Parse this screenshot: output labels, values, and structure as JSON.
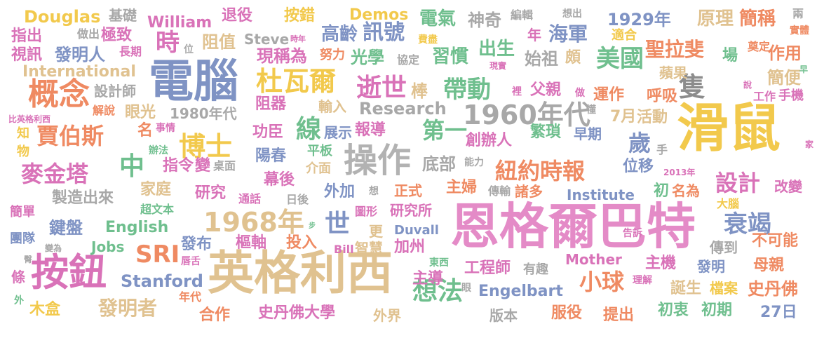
{
  "words": [
    {
      "text": "滑鼠",
      "color": "#f2c94c"
    },
    {
      "text": "恩格爾巴特",
      "color": "#e48bc7"
    },
    {
      "text": "英格利西",
      "color": "#e0c290"
    },
    {
      "text": "電腦",
      "color": "#7f93c4"
    },
    {
      "text": "按鈕",
      "color": "#d972b8"
    },
    {
      "text": "操作",
      "color": "#b2b2b2"
    },
    {
      "text": "概念",
      "color": "#ef8a62"
    },
    {
      "text": "1960年代",
      "color": "#a8a8a8"
    },
    {
      "text": "杜瓦爾",
      "color": "#f2c94c"
    },
    {
      "text": "1968年",
      "color": "#e0c290"
    },
    {
      "text": "逝世",
      "color": "#d972b8"
    },
    {
      "text": "帶動",
      "color": "#6fbf8e"
    },
    {
      "text": "賈伯斯",
      "color": "#ef8a62"
    },
    {
      "text": "麥金塔",
      "color": "#d972b8"
    },
    {
      "text": "紐約時報",
      "color": "#ef8a62"
    },
    {
      "text": "美國",
      "color": "#6fbf8e"
    },
    {
      "text": "想法",
      "color": "#6fbf8e"
    },
    {
      "text": "隻",
      "color": "#8c8c8c"
    },
    {
      "text": "博士",
      "color": "#f2c94c"
    },
    {
      "text": "第一",
      "color": "#6fbf8e"
    },
    {
      "text": "線",
      "color": "#6fbf8e"
    },
    {
      "text": "中",
      "color": "#6fbf8e"
    },
    {
      "text": "世",
      "color": "#7f93c4"
    },
    {
      "text": "SRI",
      "color": "#ef8a62"
    },
    {
      "text": "小球",
      "color": "#ef8a62"
    },
    {
      "text": "衰竭",
      "color": "#7f93c4"
    },
    {
      "text": "時",
      "color": "#d972b8"
    },
    {
      "text": "設計",
      "color": "#d972b8"
    },
    {
      "text": "歲",
      "color": "#7f93c4"
    },
    {
      "text": "發明者",
      "color": "#e0c290"
    },
    {
      "text": "Douglas",
      "color": "#f2c94c"
    },
    {
      "text": "William",
      "color": "#d972b8"
    },
    {
      "text": "Demos",
      "color": "#f2c94c"
    },
    {
      "text": "1929年",
      "color": "#7f93c4"
    },
    {
      "text": "訊號",
      "color": "#7f93c4"
    },
    {
      "text": "高齡",
      "color": "#7f93c4"
    },
    {
      "text": "電氣",
      "color": "#6fbf8e"
    },
    {
      "text": "神奇",
      "color": "#a8a8a8"
    },
    {
      "text": "海軍",
      "color": "#7f93c4"
    },
    {
      "text": "原理",
      "color": "#e0c290"
    },
    {
      "text": "簡稱",
      "color": "#ef8a62"
    },
    {
      "text": "退役",
      "color": "#d972b8"
    },
    {
      "text": "按錯",
      "color": "#f2c94c"
    },
    {
      "text": "指出",
      "color": "#d972b8"
    },
    {
      "text": "發明人",
      "color": "#7f93c4"
    },
    {
      "text": "視訊",
      "color": "#d972b8"
    },
    {
      "text": "長期",
      "color": "#d972b8"
    },
    {
      "text": "極致",
      "color": "#d972b8"
    },
    {
      "text": "做出",
      "color": "#a8a8a8"
    },
    {
      "text": "基礎",
      "color": "#a8a8a8"
    },
    {
      "text": "阻值",
      "color": "#e0c290"
    },
    {
      "text": "Steve",
      "color": "#a8a8a8"
    },
    {
      "text": "時年",
      "color": "#d972b8"
    },
    {
      "text": "現稱為",
      "color": "#d972b8"
    },
    {
      "text": "努力",
      "color": "#ef8a62"
    },
    {
      "text": "光學",
      "color": "#6fbf8e"
    },
    {
      "text": "協定",
      "color": "#a8a8a8"
    },
    {
      "text": "習慣",
      "color": "#6fbf8e"
    },
    {
      "text": "出生",
      "color": "#6fbf8e"
    },
    {
      "text": "始祖",
      "color": "#a8a8a8"
    },
    {
      "text": "頗",
      "color": "#e0c290"
    },
    {
      "text": "聖拉斐",
      "color": "#ef8a62"
    },
    {
      "text": "場",
      "color": "#6fbf8e"
    },
    {
      "text": "作用",
      "color": "#ef8a62"
    },
    {
      "text": "適合",
      "color": "#f2c94c"
    },
    {
      "text": "奠定",
      "color": "#ef8a62"
    },
    {
      "text": "International",
      "color": "#e0c290"
    },
    {
      "text": "蘋果",
      "color": "#e0c290"
    },
    {
      "text": "簡便",
      "color": "#e0c290"
    },
    {
      "text": "設計師",
      "color": "#a8a8a8"
    },
    {
      "text": "棒",
      "color": "#e0c290"
    },
    {
      "text": "父親",
      "color": "#d972b8"
    },
    {
      "text": "運作",
      "color": "#ef8a62"
    },
    {
      "text": "呼吸",
      "color": "#ef8a62"
    },
    {
      "text": "工作",
      "color": "#d972b8"
    },
    {
      "text": "手機",
      "color": "#d972b8"
    },
    {
      "text": "解說",
      "color": "#ef8a62"
    },
    {
      "text": "眼光",
      "color": "#e0c290"
    },
    {
      "text": "1980年代",
      "color": "#a8a8a8"
    },
    {
      "text": "阻器",
      "color": "#d972b8"
    },
    {
      "text": "輸入",
      "color": "#e0c290"
    },
    {
      "text": "Research",
      "color": "#a8a8a8"
    },
    {
      "text": "7月",
      "color": "#e0c290"
    },
    {
      "text": "活動",
      "color": "#e0c290"
    },
    {
      "text": "懂",
      "color": "#a8a8a8"
    },
    {
      "text": "比英格利西",
      "color": "#d972b8"
    },
    {
      "text": "知",
      "color": "#f2c94c"
    },
    {
      "text": "物",
      "color": "#f2c94c"
    },
    {
      "text": "名",
      "color": "#ef8a62"
    },
    {
      "text": "事情",
      "color": "#d972b8"
    },
    {
      "text": "功臣",
      "color": "#d972b8"
    },
    {
      "text": "展示",
      "color": "#7f93c4"
    },
    {
      "text": "報導",
      "color": "#d972b8"
    },
    {
      "text": "繁瑣",
      "color": "#6fbf8e"
    },
    {
      "text": "早期",
      "color": "#7f93c4"
    },
    {
      "text": "創辦人",
      "color": "#d972b8"
    },
    {
      "text": "手",
      "color": "#a8a8a8"
    },
    {
      "text": "家",
      "color": "#d972b8"
    },
    {
      "text": "辦法",
      "color": "#6fbf8e"
    },
    {
      "text": "指令",
      "color": "#d972b8"
    },
    {
      "text": "變",
      "color": "#d972b8"
    },
    {
      "text": "桌面",
      "color": "#a8a8a8"
    },
    {
      "text": "陽春",
      "color": "#7f93c4"
    },
    {
      "text": "平板",
      "color": "#6fbf8e"
    },
    {
      "text": "介面",
      "color": "#e0c290"
    },
    {
      "text": "底部",
      "color": "#a8a8a8"
    },
    {
      "text": "能力",
      "color": "#a8a8a8"
    },
    {
      "text": "位移",
      "color": "#7f93c4"
    },
    {
      "text": "2013年",
      "color": "#d972b8"
    },
    {
      "text": "改變",
      "color": "#d972b8"
    },
    {
      "text": "家庭",
      "color": "#e0c290"
    },
    {
      "text": "幕後",
      "color": "#d972b8"
    },
    {
      "text": "主婦",
      "color": "#ef8a62"
    },
    {
      "text": "傳輸",
      "color": "#a8a8a8"
    },
    {
      "text": "諸多",
      "color": "#ef8a62"
    },
    {
      "text": "初",
      "color": "#6fbf8e"
    },
    {
      "text": "名為",
      "color": "#ef8a62"
    },
    {
      "text": "製造出來",
      "color": "#a8a8a8"
    },
    {
      "text": "研究",
      "color": "#d972b8"
    },
    {
      "text": "通話",
      "color": "#d972b8"
    },
    {
      "text": "想",
      "color": "#a8a8a8"
    },
    {
      "text": "外加",
      "color": "#7f93c4"
    },
    {
      "text": "正式",
      "color": "#ef8a62"
    },
    {
      "text": "Institute",
      "color": "#7f93c4"
    },
    {
      "text": "大腦",
      "color": "#f2c94c"
    },
    {
      "text": "簡單",
      "color": "#d972b8"
    },
    {
      "text": "超文本",
      "color": "#6fbf8e"
    },
    {
      "text": "日後",
      "color": "#a8a8a8"
    },
    {
      "text": "圖形",
      "color": "#d972b8"
    },
    {
      "text": "研究所",
      "color": "#d972b8"
    },
    {
      "text": "鍵盤",
      "color": "#7f93c4"
    },
    {
      "text": "English",
      "color": "#6fbf8e"
    },
    {
      "text": "步",
      "color": "#6fbf8e"
    },
    {
      "text": "更",
      "color": "#e0c290"
    },
    {
      "text": "Duvall",
      "color": "#7f93c4"
    },
    {
      "text": "告訴",
      "color": "#d972b8"
    },
    {
      "text": "團隊",
      "color": "#7f93c4"
    },
    {
      "text": "Jobs",
      "color": "#6fbf8e"
    },
    {
      "text": "發布",
      "color": "#7f93c4"
    },
    {
      "text": "樞軸",
      "color": "#d972b8"
    },
    {
      "text": "投入",
      "color": "#ef8a62"
    },
    {
      "text": "Bill",
      "color": "#d972b8"
    },
    {
      "text": "智慧",
      "color": "#e0c290"
    },
    {
      "text": "加州",
      "color": "#d972b8"
    },
    {
      "text": "傳到",
      "color": "#a8a8a8"
    },
    {
      "text": "不可能",
      "color": "#ef8a62"
    },
    {
      "text": "變為",
      "color": "#a8a8a8"
    },
    {
      "text": "唇舌",
      "color": "#d972b8"
    },
    {
      "text": "東西",
      "color": "#6fbf8e"
    },
    {
      "text": "工程師",
      "color": "#d972b8"
    },
    {
      "text": "有趣",
      "color": "#a8a8a8"
    },
    {
      "text": "Mother",
      "color": "#d972b8"
    },
    {
      "text": "主機",
      "color": "#d972b8"
    },
    {
      "text": "發明",
      "color": "#7f93c4"
    },
    {
      "text": "母親",
      "color": "#ef8a62"
    },
    {
      "text": "臀",
      "color": "#a8a8a8"
    },
    {
      "text": "條",
      "color": "#d972b8"
    },
    {
      "text": "Stanford",
      "color": "#7f93c4"
    },
    {
      "text": "主導",
      "color": "#d972b8"
    },
    {
      "text": "眼",
      "color": "#a8a8a8"
    },
    {
      "text": "Engelbart",
      "color": "#7f93c4"
    },
    {
      "text": "理解",
      "color": "#d972b8"
    },
    {
      "text": "誕生",
      "color": "#e0c290"
    },
    {
      "text": "檔案",
      "color": "#f2c94c"
    },
    {
      "text": "史丹佛",
      "color": "#ef8a62"
    },
    {
      "text": "外",
      "color": "#6fbf8e"
    },
    {
      "text": "木盒",
      "color": "#f2c94c"
    },
    {
      "text": "年代",
      "color": "#ef8a62"
    },
    {
      "text": "合作",
      "color": "#ef8a62"
    },
    {
      "text": "史丹佛大學",
      "color": "#d972b8"
    },
    {
      "text": "外界",
      "color": "#e0c290"
    },
    {
      "text": "版本",
      "color": "#a8a8a8"
    },
    {
      "text": "服役",
      "color": "#ef8a62"
    },
    {
      "text": "提出",
      "color": "#ef8a62"
    },
    {
      "text": "初衷",
      "color": "#6fbf8e"
    },
    {
      "text": "初期",
      "color": "#6fbf8e"
    },
    {
      "text": "27日",
      "color": "#7f93c4"
    },
    {
      "text": "編輯",
      "color": "#a8a8a8"
    },
    {
      "text": "想出",
      "color": "#a8a8a8"
    },
    {
      "text": "兩",
      "color": "#a8a8a8"
    },
    {
      "text": "實體",
      "color": "#ef8a62"
    },
    {
      "text": "年",
      "color": "#d972b8"
    },
    {
      "text": "費盡",
      "color": "#f2c94c"
    },
    {
      "text": "現實",
      "color": "#d972b8"
    },
    {
      "text": "裡",
      "color": "#d972b8"
    },
    {
      "text": "做",
      "color": "#d972b8"
    },
    {
      "text": "說",
      "color": "#d972b8"
    },
    {
      "text": "早",
      "color": "#6fbf8e"
    },
    {
      "text": "位",
      "color": "#a8a8a8"
    }
  ]
}
